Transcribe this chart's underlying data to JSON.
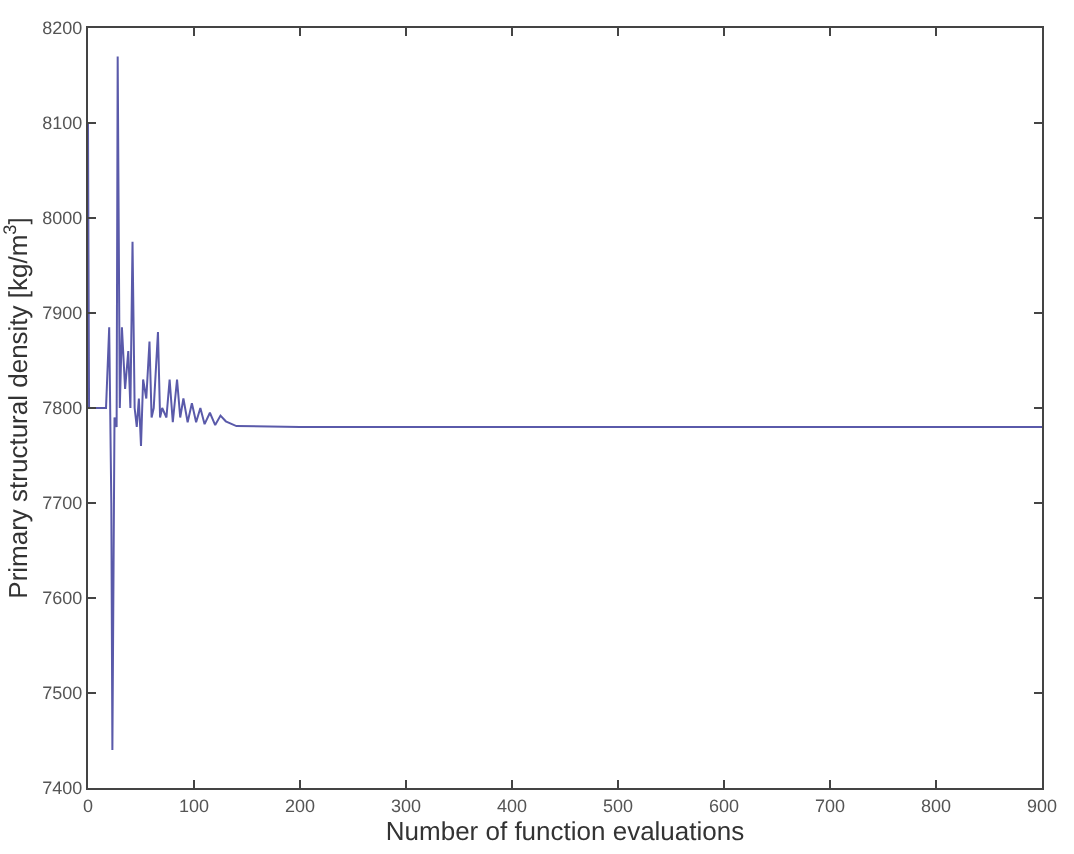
{
  "chart_data": {
    "type": "line",
    "xlabel": "Number of function evaluations",
    "ylabel": "Primary structural density [kg/m$^{3}$]",
    "xlim": [
      0,
      900
    ],
    "xticks": [
      0,
      100,
      200,
      300,
      400,
      500,
      600,
      700,
      800,
      900
    ],
    "ylim": [
      7400,
      8200
    ],
    "yticks": [
      7400,
      7500,
      7600,
      7700,
      7800,
      7900,
      8000,
      8100,
      8200
    ],
    "marker": "none",
    "line_style": "solid",
    "series": [
      {
        "color": "#5a5aaa",
        "x": [
          0,
          1,
          17,
          20,
          22,
          23,
          25,
          27,
          28,
          30,
          32,
          35,
          38,
          40,
          42,
          44,
          46,
          48,
          50,
          52,
          55,
          58,
          60,
          62,
          66,
          68,
          70,
          74,
          77,
          80,
          84,
          87,
          90,
          94,
          98,
          102,
          106,
          110,
          115,
          120,
          125,
          130,
          140,
          200,
          900
        ],
        "values": [
          8100,
          7800,
          7800,
          7885,
          7700,
          7440,
          7790,
          7780,
          8170,
          7800,
          7885,
          7820,
          7860,
          7800,
          7975,
          7800,
          7780,
          7810,
          7760,
          7830,
          7810,
          7870,
          7790,
          7800,
          7880,
          7790,
          7800,
          7790,
          7830,
          7785,
          7830,
          7790,
          7810,
          7785,
          7805,
          7785,
          7800,
          7783,
          7795,
          7782,
          7792,
          7786,
          7781,
          7780,
          7780
        ]
      }
    ]
  }
}
